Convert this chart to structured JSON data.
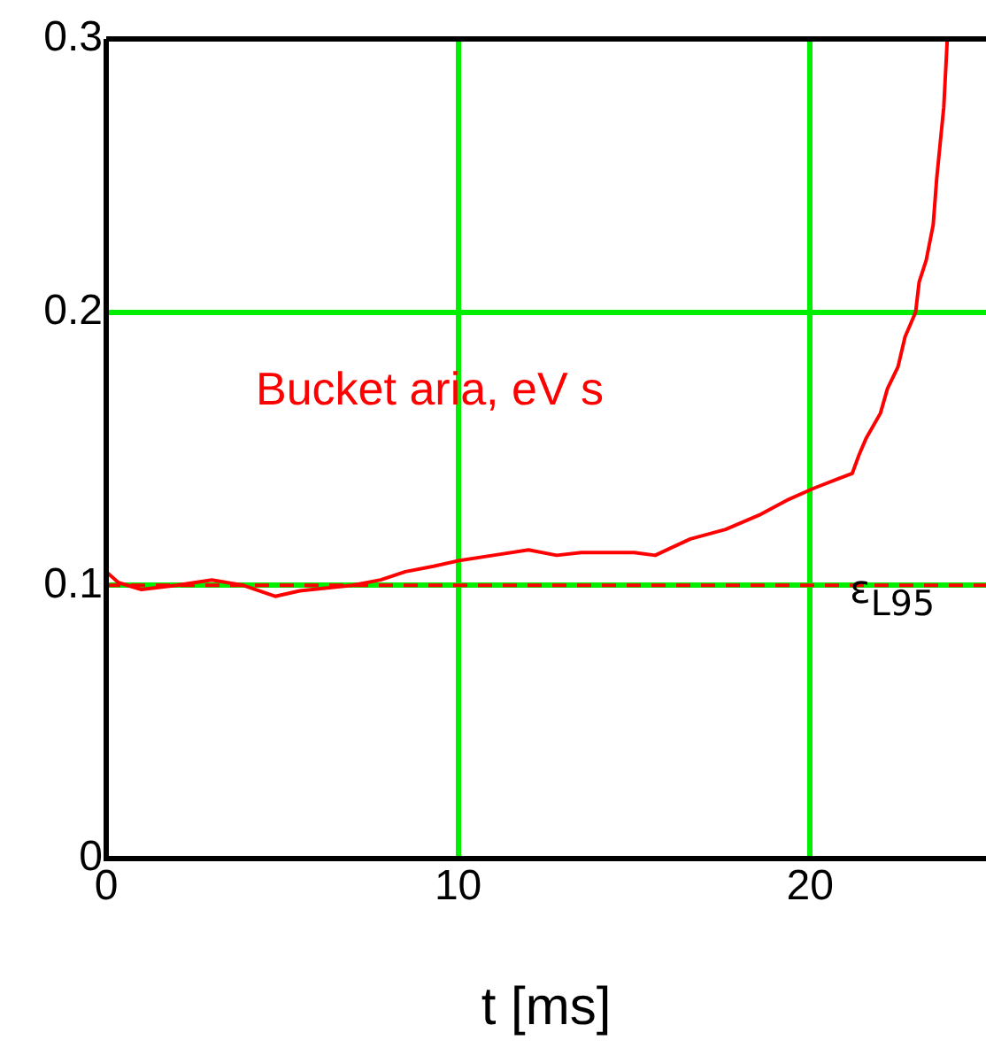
{
  "chart_data": {
    "type": "line",
    "xlabel": "t [ms]",
    "series": [
      {
        "name": "Bucket aria, eV s",
        "color": "#ff0000",
        "x": [
          0,
          0.35,
          1,
          2,
          3,
          3.9,
          4.8,
          5.5,
          7,
          7.8,
          8.5,
          9.3,
          10,
          11,
          12,
          12.8,
          13.5,
          15,
          15.6,
          16.6,
          17.6,
          18.6,
          19.4,
          20.1,
          20.8,
          21.2,
          21.4,
          21.6,
          22,
          22.2,
          22.5,
          22.7,
          23,
          23.1,
          23.3,
          23.5,
          23.6,
          23.8,
          23.9
        ],
        "values": [
          0.105,
          0.101,
          0.0985,
          0.1,
          0.102,
          0.1,
          0.096,
          0.098,
          0.1,
          0.102,
          0.105,
          0.107,
          0.109,
          0.111,
          0.113,
          0.111,
          0.112,
          0.112,
          0.111,
          0.117,
          0.1205,
          0.126,
          0.1315,
          0.1355,
          0.139,
          0.141,
          0.148,
          0.154,
          0.163,
          0.172,
          0.18,
          0.191,
          0.2,
          0.211,
          0.219,
          0.232,
          0.249,
          0.275,
          0.3
        ]
      }
    ],
    "xlim": [
      0,
      25
    ],
    "xticks": [
      0,
      10,
      20
    ],
    "ylim": [
      0,
      0.3
    ],
    "yticks": [
      0,
      0.1,
      0.2,
      0.3
    ],
    "ref_lines": [
      {
        "axis": "y",
        "value": 0.1,
        "label": "ε$_{L95}$",
        "color": "#ff0000",
        "line_style": "dashed"
      }
    ],
    "grid": true,
    "legend": false,
    "marker": "none",
    "line_style": "solid"
  }
}
